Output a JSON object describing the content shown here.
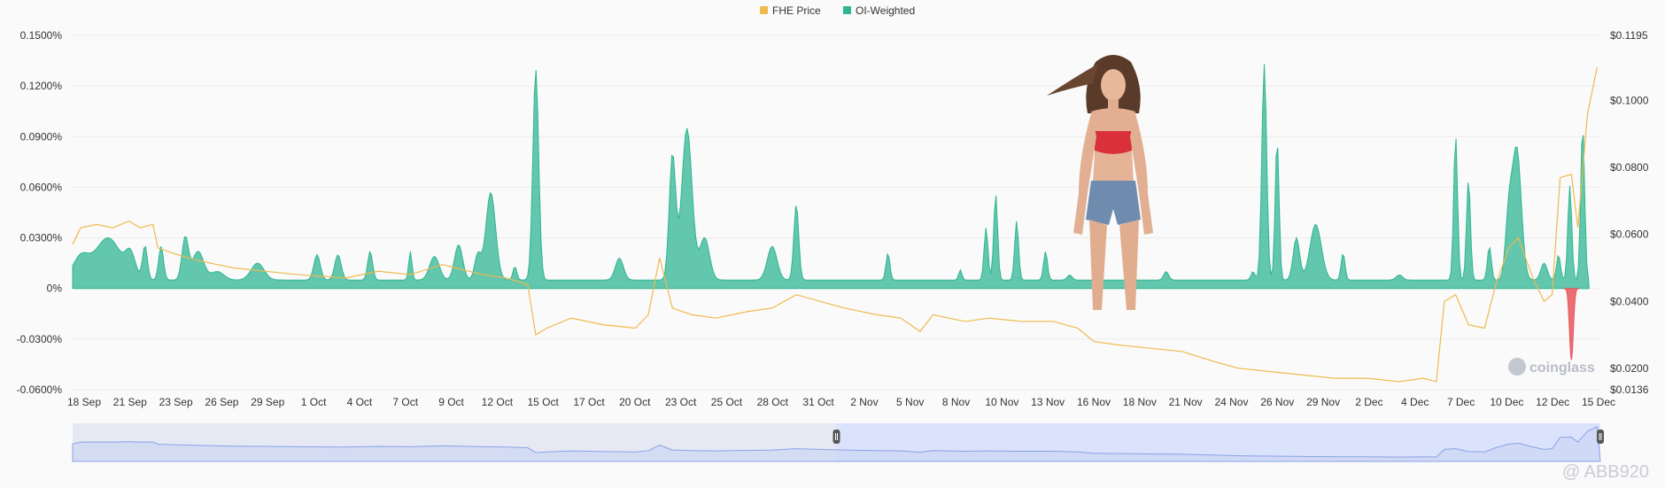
{
  "legend": [
    {
      "label": "FHE Price",
      "color": "#f0b94f"
    },
    {
      "label": "OI-Weighted",
      "color": "#2fb592"
    }
  ],
  "watermark": "coinglass",
  "attribution": "@ ABB920",
  "colors": {
    "positive": "#2fb592",
    "negative": "#e8555b",
    "price": "#f0b94f",
    "navigator": "#8aa3e6"
  },
  "chart_data": {
    "type": "area",
    "title": "",
    "x_labels": [
      "18 Sep",
      "21 Sep",
      "23 Sep",
      "26 Sep",
      "29 Sep",
      "1 Oct",
      "4 Oct",
      "7 Oct",
      "9 Oct",
      "12 Oct",
      "15 Oct",
      "17 Oct",
      "20 Oct",
      "23 Oct",
      "25 Oct",
      "28 Oct",
      "31 Oct",
      "2 Nov",
      "5 Nov",
      "8 Nov",
      "10 Nov",
      "13 Nov",
      "16 Nov",
      "18 Nov",
      "21 Nov",
      "24 Nov",
      "26 Nov",
      "29 Nov",
      "2 Dec",
      "4 Dec",
      "7 Dec",
      "10 Dec",
      "12 Dec",
      "15 Dec"
    ],
    "left_axis": {
      "ticks": [
        "0.1500%",
        "0.1200%",
        "0.0900%",
        "0.0600%",
        "0.0300%",
        "0%",
        "-0.0300%",
        "-0.0600%"
      ],
      "range": [
        -0.06,
        0.15
      ]
    },
    "right_axis": {
      "ticks": [
        "$0.1195",
        "$0.1000",
        "$0.0800",
        "$0.0600",
        "$0.0400",
        "$0.0200",
        "$0.0136"
      ],
      "range": [
        0.0136,
        0.1195
      ]
    },
    "series": [
      {
        "name": "OI-Weighted",
        "type": "area",
        "axis": "left",
        "baseline": 0.005,
        "peaks": [
          [
            0.5,
            0.018,
            0.5
          ],
          [
            2.2,
            0.03,
            0.8
          ],
          [
            3.6,
            0.018,
            0.3
          ],
          [
            4.5,
            0.025,
            0.15
          ],
          [
            5.5,
            0.025,
            0.15
          ],
          [
            7.0,
            0.03,
            0.2
          ],
          [
            7.8,
            0.022,
            0.35
          ],
          [
            9.0,
            0.01,
            0.4
          ],
          [
            11.5,
            0.015,
            0.4
          ],
          [
            15.2,
            0.02,
            0.2
          ],
          [
            16.5,
            0.02,
            0.2
          ],
          [
            18.5,
            0.022,
            0.15
          ],
          [
            21.0,
            0.022,
            0.1
          ],
          [
            22.5,
            0.019,
            0.3
          ],
          [
            24.0,
            0.026,
            0.25
          ],
          [
            25.2,
            0.02,
            0.2
          ],
          [
            26.0,
            0.057,
            0.3
          ],
          [
            27.5,
            0.013,
            0.12
          ],
          [
            28.8,
            0.13,
            0.18
          ],
          [
            34.0,
            0.018,
            0.25
          ],
          [
            37.3,
            0.079,
            0.2
          ],
          [
            38.2,
            0.095,
            0.32
          ],
          [
            39.3,
            0.03,
            0.3
          ],
          [
            43.5,
            0.025,
            0.3
          ],
          [
            45.0,
            0.05,
            0.15
          ],
          [
            50.7,
            0.021,
            0.12
          ],
          [
            55.2,
            0.011,
            0.1
          ],
          [
            56.8,
            0.036,
            0.12
          ],
          [
            57.4,
            0.056,
            0.12
          ],
          [
            58.7,
            0.04,
            0.12
          ],
          [
            60.5,
            0.022,
            0.12
          ],
          [
            62.0,
            0.008,
            0.15
          ],
          [
            68.0,
            0.01,
            0.15
          ],
          [
            73.4,
            0.01,
            0.12
          ],
          [
            74.1,
            0.133,
            0.15
          ],
          [
            74.9,
            0.089,
            0.12
          ],
          [
            76.1,
            0.03,
            0.2
          ],
          [
            77.3,
            0.038,
            0.35
          ],
          [
            79.0,
            0.021,
            0.12
          ],
          [
            82.5,
            0.008,
            0.2
          ],
          [
            86.0,
            0.091,
            0.12
          ],
          [
            86.8,
            0.065,
            0.12
          ],
          [
            88.1,
            0.025,
            0.12
          ],
          [
            89.3,
            0.04,
            0.2
          ],
          [
            89.8,
            0.083,
            0.28
          ],
          [
            91.5,
            0.015,
            0.2
          ],
          [
            92.4,
            0.02,
            0.12
          ],
          [
            93.1,
            0.061,
            0.12
          ],
          [
            93.9,
            0.097,
            0.12
          ]
        ],
        "negative": [
          [
            93.2,
            -0.042,
            0.12
          ]
        ]
      },
      {
        "name": "FHE Price",
        "type": "line",
        "axis": "right",
        "values": [
          [
            0,
            0.057
          ],
          [
            0.5,
            0.062
          ],
          [
            1.5,
            0.063
          ],
          [
            2.5,
            0.062
          ],
          [
            3.5,
            0.064
          ],
          [
            4.2,
            0.062
          ],
          [
            5,
            0.063
          ],
          [
            5.3,
            0.056
          ],
          [
            6.5,
            0.054
          ],
          [
            8,
            0.052
          ],
          [
            10,
            0.05
          ],
          [
            12,
            0.049
          ],
          [
            14,
            0.048
          ],
          [
            17,
            0.047
          ],
          [
            19,
            0.049
          ],
          [
            21,
            0.048
          ],
          [
            23,
            0.051
          ],
          [
            25.5,
            0.048
          ],
          [
            27,
            0.047
          ],
          [
            28.3,
            0.045
          ],
          [
            28.8,
            0.03
          ],
          [
            29.5,
            0.032
          ],
          [
            31,
            0.035
          ],
          [
            33,
            0.033
          ],
          [
            35,
            0.032
          ],
          [
            35.8,
            0.036
          ],
          [
            36.5,
            0.053
          ],
          [
            37.3,
            0.038
          ],
          [
            38.5,
            0.036
          ],
          [
            40,
            0.035
          ],
          [
            42,
            0.037
          ],
          [
            43.5,
            0.038
          ],
          [
            45,
            0.042
          ],
          [
            46.5,
            0.04
          ],
          [
            48,
            0.038
          ],
          [
            50,
            0.036
          ],
          [
            51.5,
            0.035
          ],
          [
            52.7,
            0.031
          ],
          [
            53.5,
            0.036
          ],
          [
            55.5,
            0.034
          ],
          [
            57,
            0.035
          ],
          [
            59,
            0.034
          ],
          [
            61,
            0.034
          ],
          [
            62.5,
            0.032
          ],
          [
            63.5,
            0.028
          ],
          [
            65,
            0.027
          ],
          [
            67,
            0.026
          ],
          [
            69,
            0.025
          ],
          [
            71,
            0.022
          ],
          [
            72.5,
            0.02
          ],
          [
            74.5,
            0.019
          ],
          [
            76.5,
            0.018
          ],
          [
            78.5,
            0.017
          ],
          [
            80.5,
            0.017
          ],
          [
            82.5,
            0.016
          ],
          [
            84,
            0.017
          ],
          [
            84.8,
            0.016
          ],
          [
            85.3,
            0.04
          ],
          [
            86,
            0.042
          ],
          [
            86.8,
            0.033
          ],
          [
            87.8,
            0.032
          ],
          [
            88.5,
            0.045
          ],
          [
            89.3,
            0.056
          ],
          [
            89.9,
            0.059
          ],
          [
            90.8,
            0.047
          ],
          [
            91.5,
            0.04
          ],
          [
            92,
            0.042
          ],
          [
            92.5,
            0.077
          ],
          [
            93.2,
            0.078
          ],
          [
            93.6,
            0.062
          ],
          [
            94.2,
            0.096
          ],
          [
            94.8,
            0.11
          ]
        ]
      }
    ],
    "navigator": {
      "selected_range": [
        0.5,
        1.0
      ]
    }
  }
}
